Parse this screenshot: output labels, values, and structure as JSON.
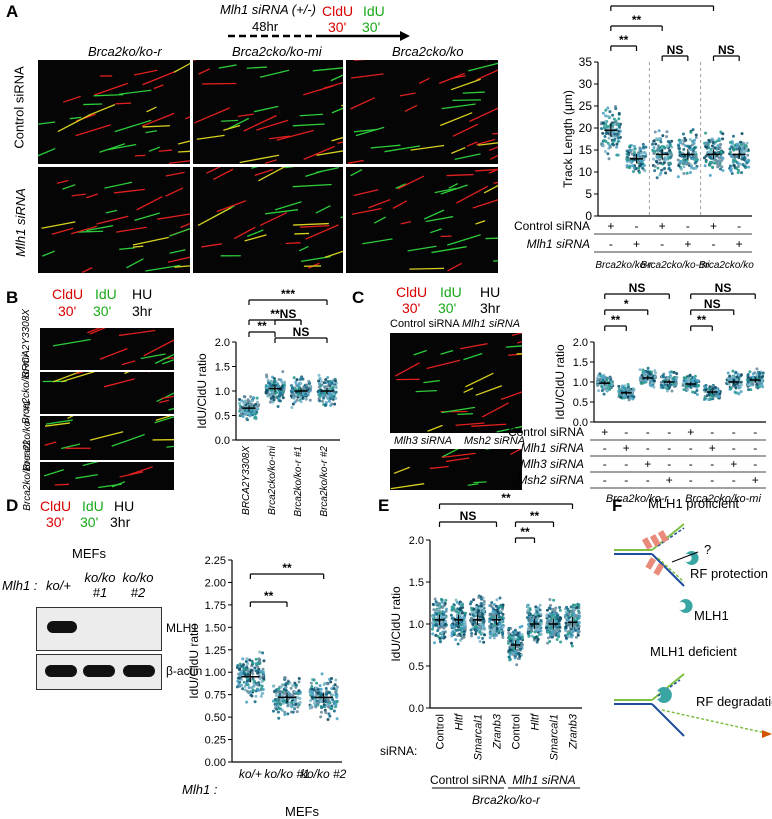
{
  "panels": {
    "A": {
      "label": "A",
      "scheme": {
        "treatment": "Mlh1 siRNA (+/-)",
        "time": "48hr",
        "label1": "CldU",
        "label1_time": "30'",
        "label2": "IdU",
        "label2_time": "30'"
      },
      "col_titles": [
        "Brca2ko/ko-r",
        "Brca2cko/ko-mi",
        "Brca2cko/ko"
      ],
      "row_titles": [
        "Control siRNA",
        "Mlh1 siRNA"
      ],
      "table_rows": [
        {
          "label": "Control siRNA",
          "signs": [
            "+",
            "-",
            "+",
            "-",
            "+",
            "-"
          ]
        },
        {
          "label": "Mlh1 siRNA",
          "signs": [
            "-",
            "+",
            "-",
            "+",
            "-",
            "+"
          ]
        }
      ],
      "groups": [
        "Brca2ko/ko-r",
        "Brca2cko/ko-mi",
        "Brca2cko/ko"
      ],
      "sig": [
        {
          "from": 0,
          "to": 1,
          "text": "**"
        },
        {
          "from": 0,
          "to": 2,
          "text": "**"
        },
        {
          "from": 0,
          "to": 4,
          "text": "**"
        },
        {
          "from": 2,
          "to": 3,
          "text": "NS"
        },
        {
          "from": 4,
          "to": 5,
          "text": "NS"
        }
      ]
    },
    "B": {
      "label": "B",
      "scheme": {
        "label1": "CldU",
        "label1_time": "30'",
        "label2": "IdU",
        "label2_time": "30'",
        "hu": "HU",
        "hu_time": "3hr"
      },
      "rows": [
        "BRCA2Y3308X",
        "Brca2cko/ko-mi",
        "Brca2ko/ko-r #1",
        "Brca2ko/ko-r #2"
      ],
      "sig": [
        {
          "from": 0,
          "to": 1,
          "text": "**"
        },
        {
          "from": 0,
          "to": 2,
          "text": "**"
        },
        {
          "from": 0,
          "to": 3,
          "text": "***"
        },
        {
          "from": 1,
          "to": 2,
          "text": "NS"
        },
        {
          "from": 1,
          "to": 3,
          "text": "NS"
        }
      ]
    },
    "C": {
      "label": "C",
      "scheme": {
        "label1": "CldU",
        "label1_time": "30'",
        "label2": "IdU",
        "label2_time": "30'",
        "hu": "HU",
        "hu_time": "3hr"
      },
      "image_titles": [
        "Control siRNA",
        "Mlh1 siRNA",
        "Mlh3 siRNA",
        "Msh2 siRNA"
      ],
      "row_labels": [
        "Brca2ko/ko-r",
        "Brca2cko/ko-mi",
        "Brca2ko/ko-r",
        "Brca2cko/ko-mi"
      ],
      "table_rows": [
        {
          "label": "Control siRNA",
          "signs": [
            "+",
            "-",
            "-",
            "-",
            "+",
            "-",
            "-",
            "-"
          ]
        },
        {
          "label": "Mlh1 siRNA",
          "signs": [
            "-",
            "+",
            "-",
            "-",
            "-",
            "+",
            "-",
            "-"
          ]
        },
        {
          "label": "Mlh3 siRNA",
          "signs": [
            "-",
            "-",
            "+",
            "-",
            "-",
            "-",
            "+",
            "-"
          ]
        },
        {
          "label": "Msh2 siRNA",
          "signs": [
            "-",
            "-",
            "-",
            "+",
            "-",
            "-",
            "-",
            "+"
          ]
        }
      ],
      "groups": [
        "Brca2ko/ko-r",
        "Brca2cko/ko-mi"
      ],
      "sig": [
        {
          "from": 0,
          "to": 1,
          "text": "**"
        },
        {
          "from": 0,
          "to": 2,
          "text": "*"
        },
        {
          "from": 0,
          "to": 3,
          "text": "NS"
        },
        {
          "from": 4,
          "to": 5,
          "text": "**"
        },
        {
          "from": 4,
          "to": 6,
          "text": "NS"
        },
        {
          "from": 4,
          "to": 7,
          "text": "NS"
        }
      ]
    },
    "D": {
      "label": "D",
      "scheme": {
        "label1": "CldU",
        "label1_time": "30'",
        "label2": "IdU",
        "label2_time": "30'",
        "hu": "HU",
        "hu_time": "3hr"
      },
      "cells": "MEFs",
      "genotype_label": "Mlh1 :",
      "lanes": [
        "ko/+",
        "ko/ko #1",
        "ko/ko #2"
      ],
      "blots": [
        "MLH1",
        "β-actin"
      ],
      "sig": [
        {
          "from": 0,
          "to": 1,
          "text": "**"
        },
        {
          "from": 0,
          "to": 2,
          "text": "**"
        }
      ]
    },
    "E": {
      "label": "E",
      "sirna_label": "siRNA:",
      "categories": [
        "Control",
        "Hltf",
        "Smarcal1",
        "Zranb3",
        "Control",
        "Hltf",
        "Smarcal1",
        "Zranb3"
      ],
      "groups": [
        "Control siRNA",
        "Mlh1 siRNA"
      ],
      "cell_line": "Brca2ko/ko-r",
      "sig": [
        {
          "from": 0,
          "to": 3,
          "text": "NS"
        },
        {
          "from": 0,
          "to": 7,
          "text": "**"
        },
        {
          "from": 4,
          "to": 5,
          "text": "**"
        },
        {
          "from": 4,
          "to": 6,
          "text": "**"
        }
      ]
    },
    "F": {
      "label": "F",
      "top_title": "MLH1 proficient",
      "q": "?",
      "protection": "RF protection",
      "mlh1": "MLH1",
      "bottom_title": "MLH1 deficient",
      "degradation": "RF degradation"
    }
  },
  "chart_data": [
    {
      "type": "scatter",
      "panel": "A",
      "ylabel": "Track Length (μm)",
      "ylim": [
        0,
        35
      ],
      "yticks": [
        0,
        5,
        10,
        15,
        20,
        25,
        30,
        35
      ],
      "categories": [
        "Brca2ko/ko-r Control",
        "Brca2ko/ko-r Mlh1",
        "Brca2cko/ko-mi Control",
        "Brca2cko/ko-mi Mlh1",
        "Brca2cko/ko Control",
        "Brca2cko/ko Mlh1"
      ],
      "medians": [
        19.5,
        13,
        14,
        14,
        14,
        14
      ],
      "spread": [
        5,
        3.5,
        4,
        4,
        3.5,
        3.5
      ]
    },
    {
      "type": "scatter",
      "panel": "B",
      "ylabel": "IdU/CldU ratio",
      "ylim": [
        0,
        2.0
      ],
      "yticks": [
        0,
        0.5,
        1.0,
        1.5,
        2.0
      ],
      "categories": [
        "BRCA2Y3308X",
        "Brca2cko/ko-mi",
        "Brca2ko/ko-r #1",
        "Brca2ko/ko-r #2"
      ],
      "medians": [
        0.65,
        1.05,
        1.0,
        1.0
      ],
      "spread": [
        0.2,
        0.25,
        0.22,
        0.22
      ]
    },
    {
      "type": "scatter",
      "panel": "C",
      "ylabel": "IdU/CldU ratio",
      "ylim": [
        0,
        2.0
      ],
      "yticks": [
        0,
        0.5,
        1.0,
        1.5,
        2.0
      ],
      "categories": [
        "ko/ko-r Control",
        "ko/ko-r Mlh1",
        "ko/ko-r Mlh3",
        "ko/ko-r Msh2",
        "cko/ko-mi Control",
        "cko/ko-mi Mlh1",
        "cko/ko-mi Mlh3",
        "cko/ko-mi Msh2"
      ],
      "medians": [
        0.97,
        0.73,
        1.1,
        1.0,
        0.95,
        0.75,
        1.0,
        1.05
      ],
      "spread": [
        0.18,
        0.15,
        0.2,
        0.2,
        0.18,
        0.17,
        0.2,
        0.2
      ]
    },
    {
      "type": "scatter",
      "panel": "D",
      "ylabel": "IdU/CldU ratio",
      "ylim": [
        0,
        2.25
      ],
      "yticks": [
        0,
        0.25,
        0.5,
        0.75,
        1.0,
        1.25,
        1.5,
        1.75,
        2.0,
        2.25
      ],
      "categories": [
        "ko/+",
        "ko/ko #1",
        "ko/ko #2"
      ],
      "medians": [
        0.95,
        0.72,
        0.72
      ],
      "spread": [
        0.2,
        0.18,
        0.18
      ]
    },
    {
      "type": "scatter",
      "panel": "E",
      "ylabel": "IdU/CldU ratio",
      "ylim": [
        0,
        2.0
      ],
      "yticks": [
        0,
        0.5,
        1.0,
        1.5,
        2.0
      ],
      "categories": [
        "Control",
        "Hltf",
        "Smarcal1",
        "Zranb3",
        "Control",
        "Hltf",
        "Smarcal1",
        "Zranb3"
      ],
      "medians": [
        1.05,
        1.05,
        1.05,
        1.05,
        0.75,
        1.0,
        1.0,
        1.02
      ],
      "spread": [
        0.2,
        0.2,
        0.2,
        0.2,
        0.18,
        0.2,
        0.2,
        0.2
      ]
    }
  ]
}
